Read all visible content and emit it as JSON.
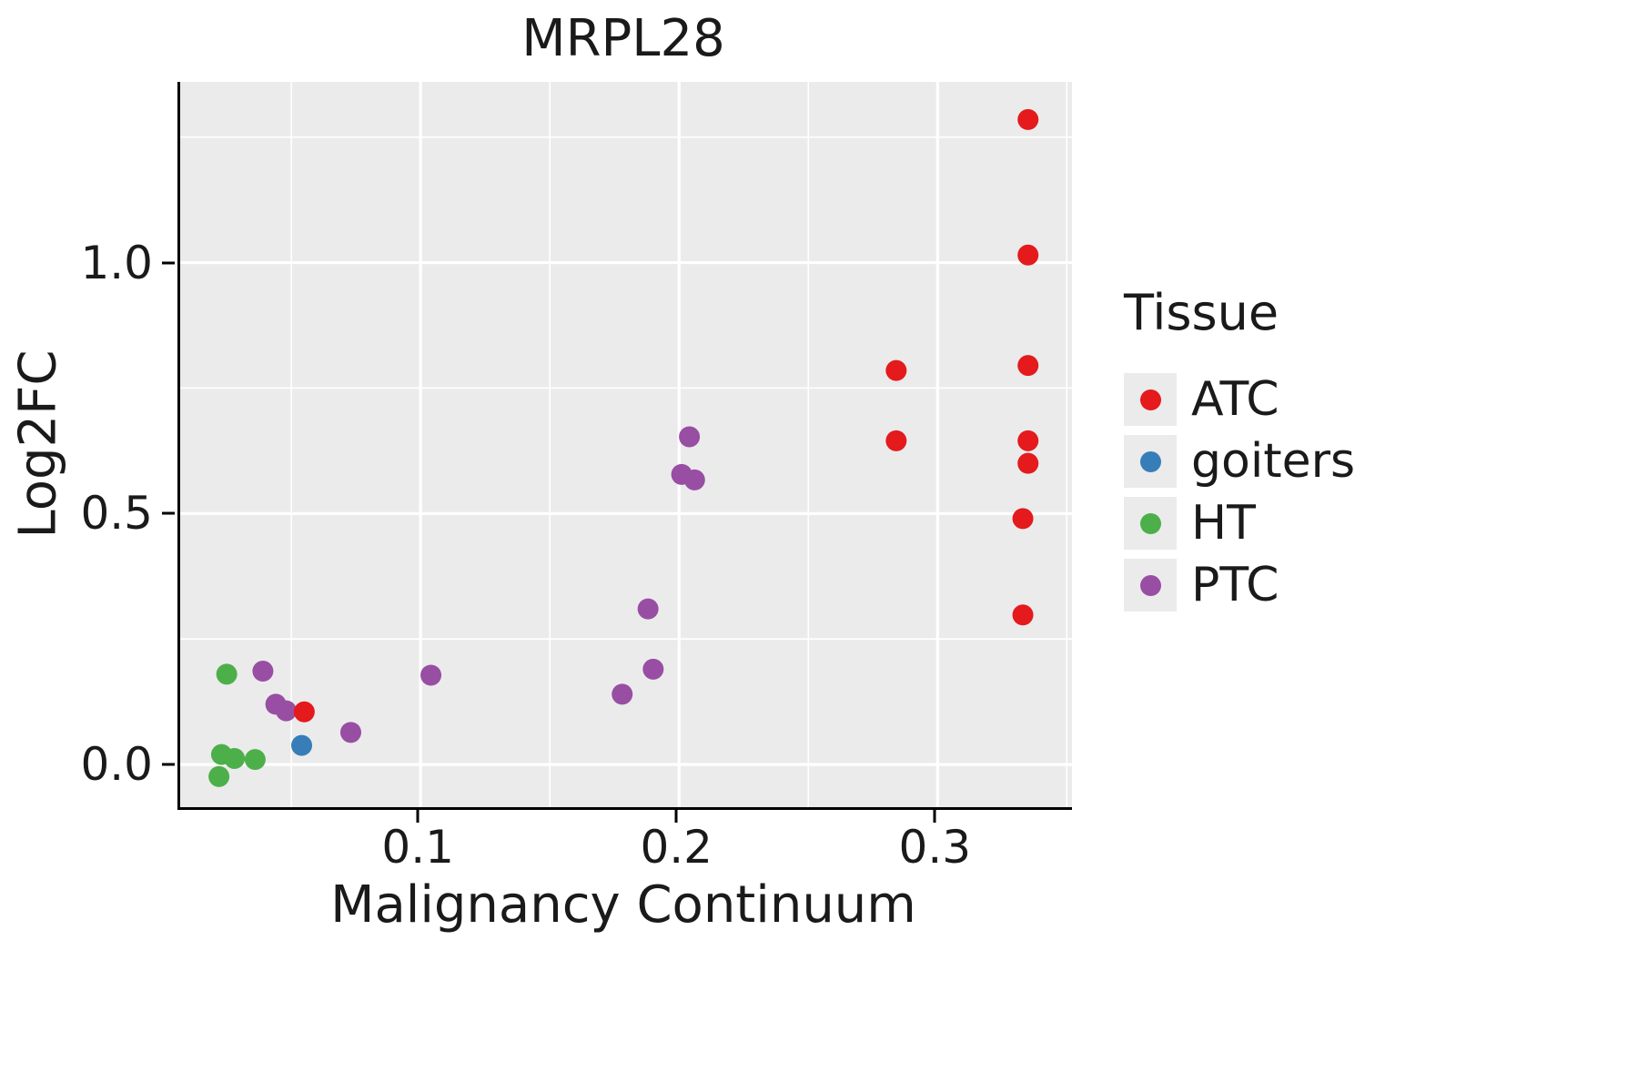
{
  "title": "MRPL28",
  "axes": {
    "x_label": "Malignancy Continuum",
    "y_label": "Log2FC"
  },
  "legend": {
    "title": "Tissue",
    "items": [
      {
        "label": "ATC",
        "color": "#E41A1C"
      },
      {
        "label": "goiters",
        "color": "#377EB8"
      },
      {
        "label": "HT",
        "color": "#4DAF4A"
      },
      {
        "label": "PTC",
        "color": "#984EA3"
      }
    ]
  },
  "chart_data": {
    "type": "scatter",
    "title": "MRPL28",
    "xlabel": "Malignancy Continuum",
    "ylabel": "Log2FC",
    "xlim": [
      0.007,
      0.352
    ],
    "ylim": [
      -0.085,
      1.36
    ],
    "x_ticks": [
      0.1,
      0.2,
      0.3
    ],
    "x_tick_labels": [
      "0.1",
      "0.2",
      "0.3"
    ],
    "x_minor_ticks": [
      0.05,
      0.15,
      0.25,
      0.35
    ],
    "y_ticks": [
      0.0,
      0.5,
      1.0
    ],
    "y_tick_labels": [
      "0.0",
      "0.5",
      "1.0"
    ],
    "y_minor_ticks": [
      0.25,
      0.75,
      1.25
    ],
    "grid": true,
    "grid_color": "#FFFFFF",
    "panel_background": "#EBEBEB",
    "legend_position": "right",
    "point_radius": 11.5,
    "series": [
      {
        "name": "ATC",
        "color": "#E41A1C",
        "points": [
          [
            0.335,
            1.285
          ],
          [
            0.335,
            1.015
          ],
          [
            0.284,
            0.785
          ],
          [
            0.335,
            0.795
          ],
          [
            0.284,
            0.645
          ],
          [
            0.335,
            0.645
          ],
          [
            0.335,
            0.6
          ],
          [
            0.333,
            0.49
          ],
          [
            0.333,
            0.298
          ],
          [
            0.055,
            0.105
          ]
        ]
      },
      {
        "name": "goiters",
        "color": "#377EB8",
        "points": [
          [
            0.054,
            0.038
          ]
        ]
      },
      {
        "name": "HT",
        "color": "#4DAF4A",
        "points": [
          [
            0.025,
            0.18
          ],
          [
            0.023,
            0.02
          ],
          [
            0.028,
            0.012
          ],
          [
            0.036,
            0.01
          ],
          [
            0.022,
            -0.024
          ]
        ]
      },
      {
        "name": "PTC",
        "color": "#984EA3",
        "points": [
          [
            0.039,
            0.186
          ],
          [
            0.044,
            0.12
          ],
          [
            0.048,
            0.107
          ],
          [
            0.073,
            0.064
          ],
          [
            0.104,
            0.178
          ],
          [
            0.178,
            0.14
          ],
          [
            0.19,
            0.19
          ],
          [
            0.188,
            0.31
          ],
          [
            0.204,
            0.653
          ],
          [
            0.201,
            0.578
          ],
          [
            0.206,
            0.567
          ]
        ]
      }
    ]
  }
}
